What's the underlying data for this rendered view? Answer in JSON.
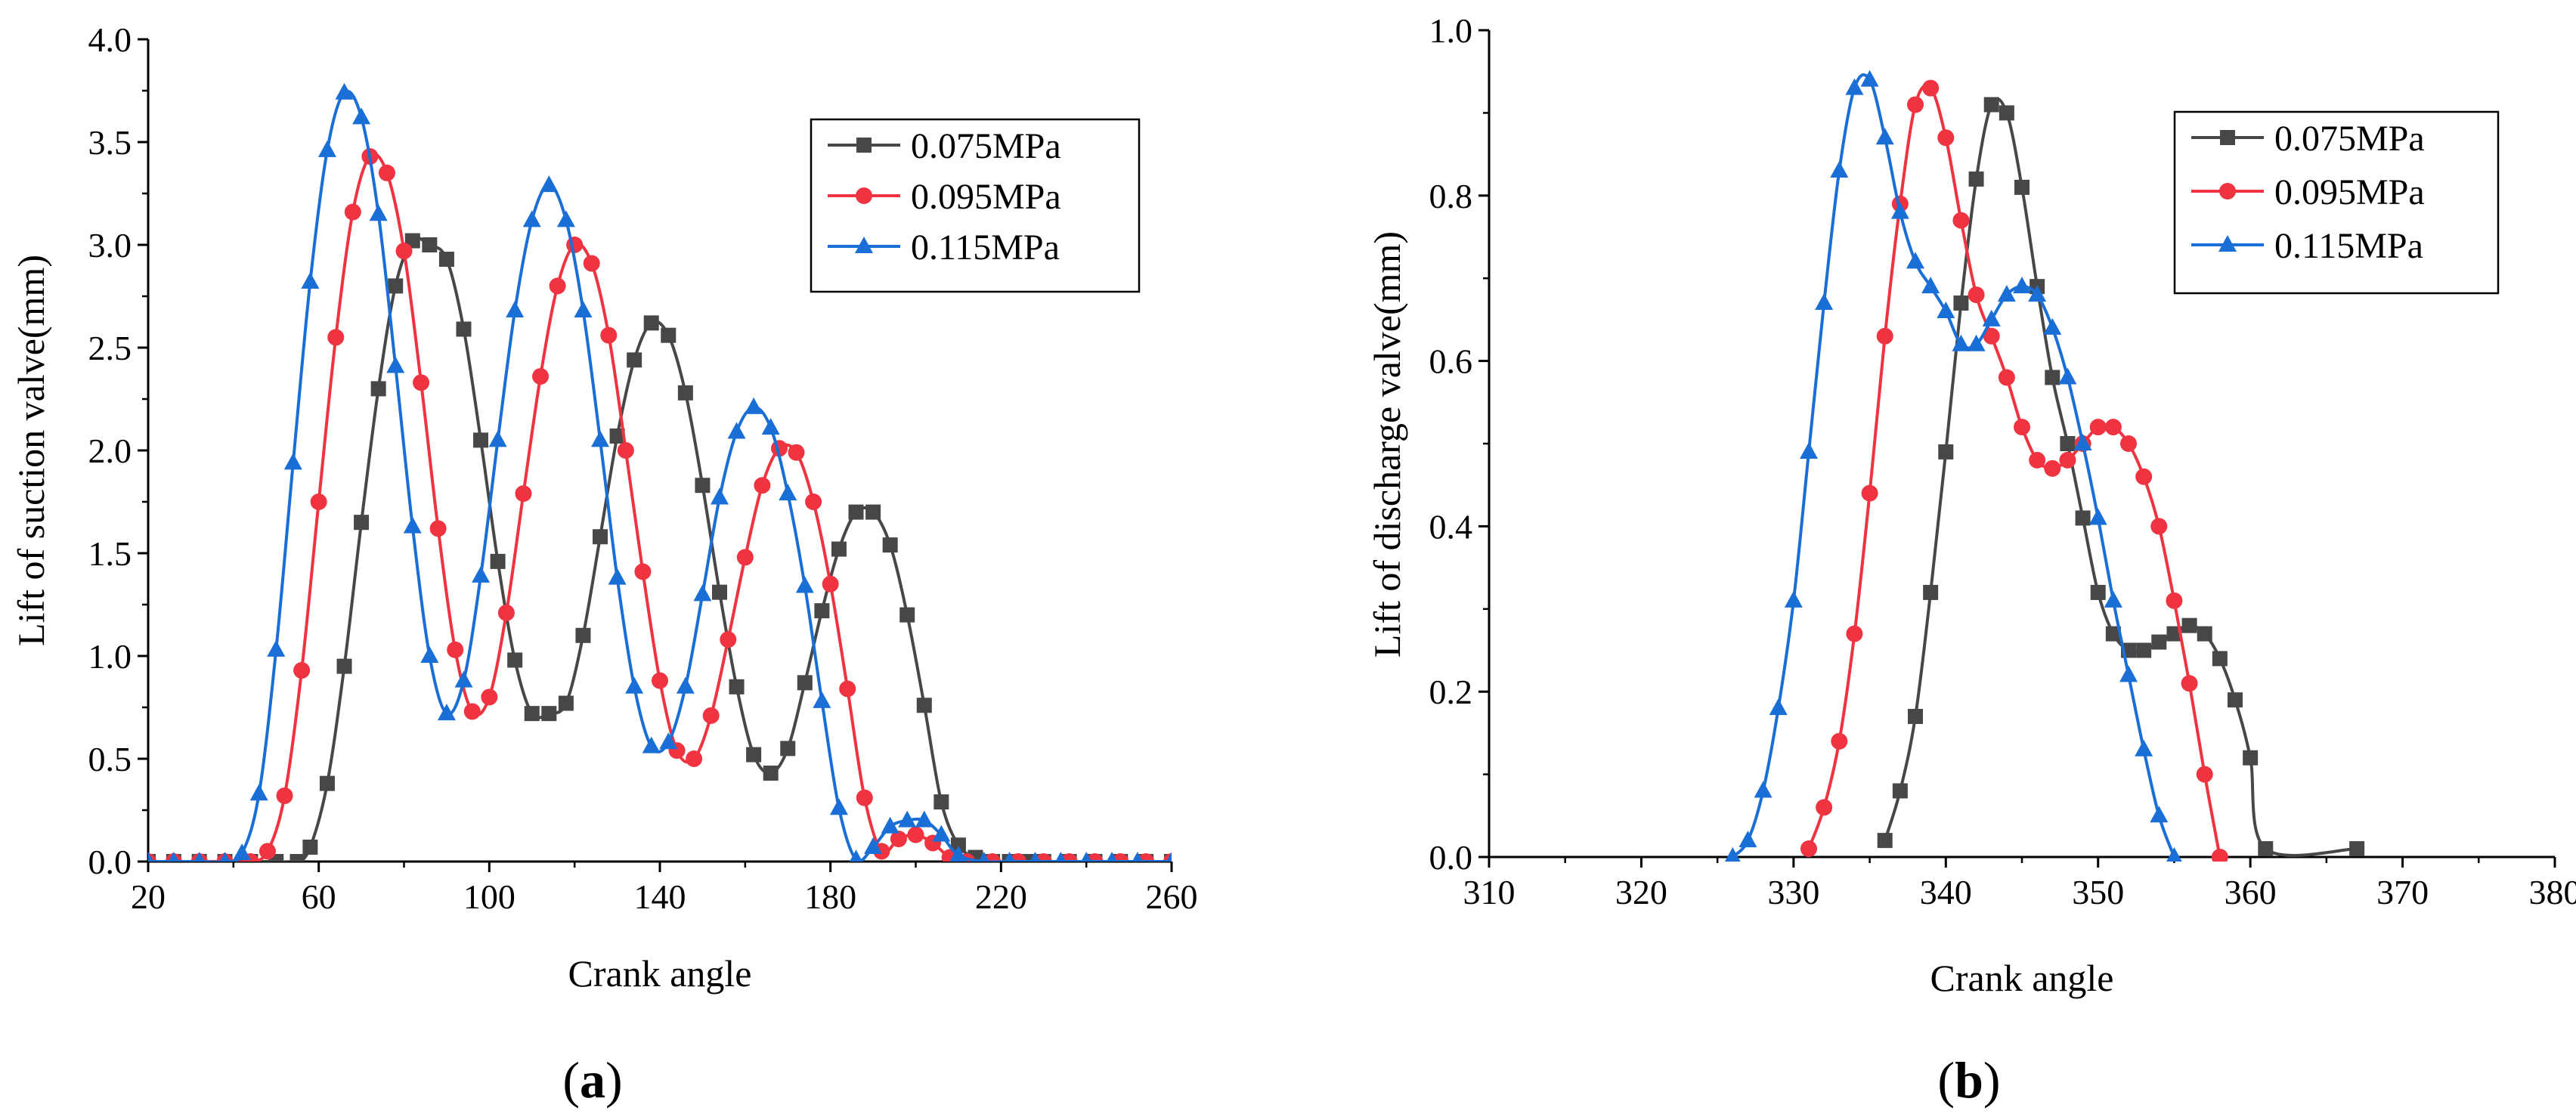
{
  "colors": {
    "s075": "#474747",
    "s095": "#ef3340",
    "s115": "#1a6fd6"
  },
  "chart_data": [
    {
      "id": "a",
      "type": "line",
      "panel_label": "a",
      "xlabel": "Crank angle",
      "ylabel": "Lift of suction valve(mm)",
      "xlim": [
        20,
        260
      ],
      "ylim": [
        0,
        4
      ],
      "xticks": [
        "20",
        "60",
        "100",
        "140",
        "180",
        "220",
        "260"
      ],
      "yticks": [
        "0.0",
        "0.5",
        "1.0",
        "1.5",
        "2.0",
        "2.5",
        "3.0",
        "3.5",
        "4.0"
      ],
      "legend_position": "top-right",
      "series": [
        {
          "name": "0.075MPa",
          "marker": "square",
          "color_key": "s075",
          "points": [
            [
              20,
              0
            ],
            [
              26,
              0
            ],
            [
              32,
              0
            ],
            [
              38,
              0
            ],
            [
              44,
              0
            ],
            [
              50,
              0
            ],
            [
              55,
              0
            ],
            [
              58,
              0.07
            ],
            [
              62,
              0.38
            ],
            [
              66,
              0.95
            ],
            [
              70,
              1.65
            ],
            [
              74,
              2.3
            ],
            [
              78,
              2.8
            ],
            [
              82,
              3.02
            ],
            [
              86,
              3.0
            ],
            [
              90,
              2.93
            ],
            [
              94,
              2.59
            ],
            [
              98,
              2.05
            ],
            [
              102,
              1.46
            ],
            [
              106,
              0.98
            ],
            [
              110,
              0.72
            ],
            [
              114,
              0.72
            ],
            [
              118,
              0.77
            ],
            [
              122,
              1.1
            ],
            [
              126,
              1.58
            ],
            [
              130,
              2.07
            ],
            [
              134,
              2.44
            ],
            [
              138,
              2.62
            ],
            [
              142,
              2.56
            ],
            [
              146,
              2.28
            ],
            [
              150,
              1.83
            ],
            [
              154,
              1.31
            ],
            [
              158,
              0.85
            ],
            [
              162,
              0.52
            ],
            [
              166,
              0.43
            ],
            [
              170,
              0.55
            ],
            [
              174,
              0.87
            ],
            [
              178,
              1.22
            ],
            [
              182,
              1.52
            ],
            [
              186,
              1.7
            ],
            [
              190,
              1.7
            ],
            [
              194,
              1.54
            ],
            [
              198,
              1.2
            ],
            [
              202,
              0.76
            ],
            [
              206,
              0.29
            ],
            [
              210,
              0.08
            ],
            [
              214,
              0.02
            ],
            [
              218,
              0.0
            ],
            [
              222,
              0
            ],
            [
              226,
              0
            ],
            [
              230,
              0
            ],
            [
              236,
              0
            ],
            [
              242,
              0
            ],
            [
              248,
              0
            ],
            [
              254,
              0
            ],
            [
              260,
              0
            ]
          ]
        },
        {
          "name": "0.095MPa",
          "marker": "circle",
          "color_key": "s095",
          "points": [
            [
              20,
              0
            ],
            [
              26,
              0
            ],
            [
              32,
              0
            ],
            [
              38,
              0
            ],
            [
              44,
              0
            ],
            [
              48,
              0.05
            ],
            [
              52,
              0.32
            ],
            [
              56,
              0.93
            ],
            [
              60,
              1.75
            ],
            [
              64,
              2.55
            ],
            [
              68,
              3.16
            ],
            [
              72,
              3.43
            ],
            [
              76,
              3.35
            ],
            [
              80,
              2.97
            ],
            [
              84,
              2.33
            ],
            [
              88,
              1.62
            ],
            [
              92,
              1.03
            ],
            [
              96,
              0.73
            ],
            [
              100,
              0.8
            ],
            [
              104,
              1.21
            ],
            [
              108,
              1.79
            ],
            [
              112,
              2.36
            ],
            [
              116,
              2.8
            ],
            [
              120,
              3.0
            ],
            [
              124,
              2.91
            ],
            [
              128,
              2.56
            ],
            [
              132,
              2.0
            ],
            [
              136,
              1.41
            ],
            [
              140,
              0.88
            ],
            [
              144,
              0.54
            ],
            [
              148,
              0.5
            ],
            [
              152,
              0.71
            ],
            [
              156,
              1.08
            ],
            [
              160,
              1.48
            ],
            [
              164,
              1.83
            ],
            [
              168,
              2.01
            ],
            [
              172,
              1.99
            ],
            [
              176,
              1.75
            ],
            [
              180,
              1.35
            ],
            [
              184,
              0.84
            ],
            [
              188,
              0.31
            ],
            [
              192,
              0.05
            ],
            [
              196,
              0.11
            ],
            [
              200,
              0.13
            ],
            [
              204,
              0.09
            ],
            [
              208,
              0.02
            ],
            [
              212,
              0
            ],
            [
              218,
              0
            ],
            [
              224,
              0
            ],
            [
              230,
              0
            ],
            [
              236,
              0
            ],
            [
              242,
              0
            ],
            [
              248,
              0
            ],
            [
              254,
              0
            ],
            [
              260,
              0
            ]
          ]
        },
        {
          "name": "0.115MPa",
          "marker": "triangle",
          "color_key": "s115",
          "points": [
            [
              20,
              0
            ],
            [
              26,
              0
            ],
            [
              32,
              0
            ],
            [
              38,
              0
            ],
            [
              42,
              0.04
            ],
            [
              46,
              0.33
            ],
            [
              50,
              1.03
            ],
            [
              54,
              1.94
            ],
            [
              58,
              2.82
            ],
            [
              62,
              3.46
            ],
            [
              66,
              3.74
            ],
            [
              70,
              3.62
            ],
            [
              74,
              3.15
            ],
            [
              78,
              2.41
            ],
            [
              82,
              1.63
            ],
            [
              86,
              1.0
            ],
            [
              90,
              0.72
            ],
            [
              94,
              0.88
            ],
            [
              98,
              1.39
            ],
            [
              102,
              2.05
            ],
            [
              106,
              2.68
            ],
            [
              110,
              3.12
            ],
            [
              114,
              3.29
            ],
            [
              118,
              3.12
            ],
            [
              122,
              2.68
            ],
            [
              126,
              2.05
            ],
            [
              130,
              1.38
            ],
            [
              134,
              0.85
            ],
            [
              138,
              0.56
            ],
            [
              142,
              0.58
            ],
            [
              146,
              0.85
            ],
            [
              150,
              1.3
            ],
            [
              154,
              1.77
            ],
            [
              158,
              2.09
            ],
            [
              162,
              2.21
            ],
            [
              166,
              2.11
            ],
            [
              170,
              1.79
            ],
            [
              174,
              1.34
            ],
            [
              178,
              0.78
            ],
            [
              182,
              0.26
            ],
            [
              186,
              0.01
            ],
            [
              190,
              0.07
            ],
            [
              194,
              0.17
            ],
            [
              198,
              0.2
            ],
            [
              202,
              0.2
            ],
            [
              206,
              0.13
            ],
            [
              210,
              0.03
            ],
            [
              216,
              0
            ],
            [
              222,
              0
            ],
            [
              228,
              0
            ],
            [
              234,
              0
            ],
            [
              240,
              0
            ],
            [
              246,
              0
            ],
            [
              252,
              0
            ],
            [
              260,
              0
            ]
          ]
        }
      ]
    },
    {
      "id": "b",
      "type": "line",
      "panel_label": "b",
      "xlabel": "Crank angle",
      "ylabel": "Lift of discharge valve(mm)",
      "xlim": [
        310,
        380
      ],
      "ylim": [
        0,
        1
      ],
      "xticks": [
        "310",
        "320",
        "330",
        "340",
        "350",
        "360",
        "370",
        "380"
      ],
      "yticks": [
        "0.0",
        "0.2",
        "0.4",
        "0.6",
        "0.8",
        "1.0"
      ],
      "legend_position": "top-right",
      "series": [
        {
          "name": "0.075MPa",
          "marker": "square",
          "color_key": "s075",
          "points": [
            [
              336,
              0.02
            ],
            [
              337,
              0.08
            ],
            [
              338,
              0.17
            ],
            [
              339,
              0.32
            ],
            [
              340,
              0.49
            ],
            [
              341,
              0.67
            ],
            [
              342,
              0.82
            ],
            [
              343,
              0.91
            ],
            [
              344,
              0.9
            ],
            [
              345,
              0.81
            ],
            [
              346,
              0.69
            ],
            [
              347,
              0.58
            ],
            [
              348,
              0.5
            ],
            [
              349,
              0.41
            ],
            [
              350,
              0.32
            ],
            [
              351,
              0.27
            ],
            [
              352,
              0.25
            ],
            [
              353,
              0.25
            ],
            [
              354,
              0.26
            ],
            [
              355,
              0.27
            ],
            [
              356,
              0.28
            ],
            [
              357,
              0.27
            ],
            [
              358,
              0.24
            ],
            [
              359,
              0.19
            ],
            [
              360,
              0.12
            ],
            [
              361,
              0.01
            ],
            [
              367,
              0.01
            ]
          ]
        },
        {
          "name": "0.095MPa",
          "marker": "circle",
          "color_key": "s095",
          "points": [
            [
              331,
              0.01
            ],
            [
              332,
              0.06
            ],
            [
              333,
              0.14
            ],
            [
              334,
              0.27
            ],
            [
              335,
              0.44
            ],
            [
              336,
              0.63
            ],
            [
              337,
              0.79
            ],
            [
              338,
              0.91
            ],
            [
              339,
              0.93
            ],
            [
              340,
              0.87
            ],
            [
              341,
              0.77
            ],
            [
              342,
              0.68
            ],
            [
              343,
              0.63
            ],
            [
              344,
              0.58
            ],
            [
              345,
              0.52
            ],
            [
              346,
              0.48
            ],
            [
              347,
              0.47
            ],
            [
              348,
              0.48
            ],
            [
              349,
              0.5
            ],
            [
              350,
              0.52
            ],
            [
              351,
              0.52
            ],
            [
              352,
              0.5
            ],
            [
              353,
              0.46
            ],
            [
              354,
              0.4
            ],
            [
              355,
              0.31
            ],
            [
              356,
              0.21
            ],
            [
              357,
              0.1
            ],
            [
              358,
              0.0
            ]
          ]
        },
        {
          "name": "0.115MPa",
          "marker": "triangle",
          "color_key": "s115",
          "points": [
            [
              326,
              0.0
            ],
            [
              327,
              0.02
            ],
            [
              328,
              0.08
            ],
            [
              329,
              0.18
            ],
            [
              330,
              0.31
            ],
            [
              331,
              0.49
            ],
            [
              332,
              0.67
            ],
            [
              333,
              0.83
            ],
            [
              334,
              0.93
            ],
            [
              335,
              0.94
            ],
            [
              336,
              0.87
            ],
            [
              337,
              0.78
            ],
            [
              338,
              0.72
            ],
            [
              339,
              0.69
            ],
            [
              340,
              0.66
            ],
            [
              341,
              0.62
            ],
            [
              342,
              0.62
            ],
            [
              343,
              0.65
            ],
            [
              344,
              0.68
            ],
            [
              345,
              0.69
            ],
            [
              346,
              0.68
            ],
            [
              347,
              0.64
            ],
            [
              348,
              0.58
            ],
            [
              349,
              0.5
            ],
            [
              350,
              0.41
            ],
            [
              351,
              0.31
            ],
            [
              352,
              0.22
            ],
            [
              353,
              0.13
            ],
            [
              354,
              0.05
            ],
            [
              355,
              0.0
            ]
          ]
        }
      ]
    }
  ]
}
